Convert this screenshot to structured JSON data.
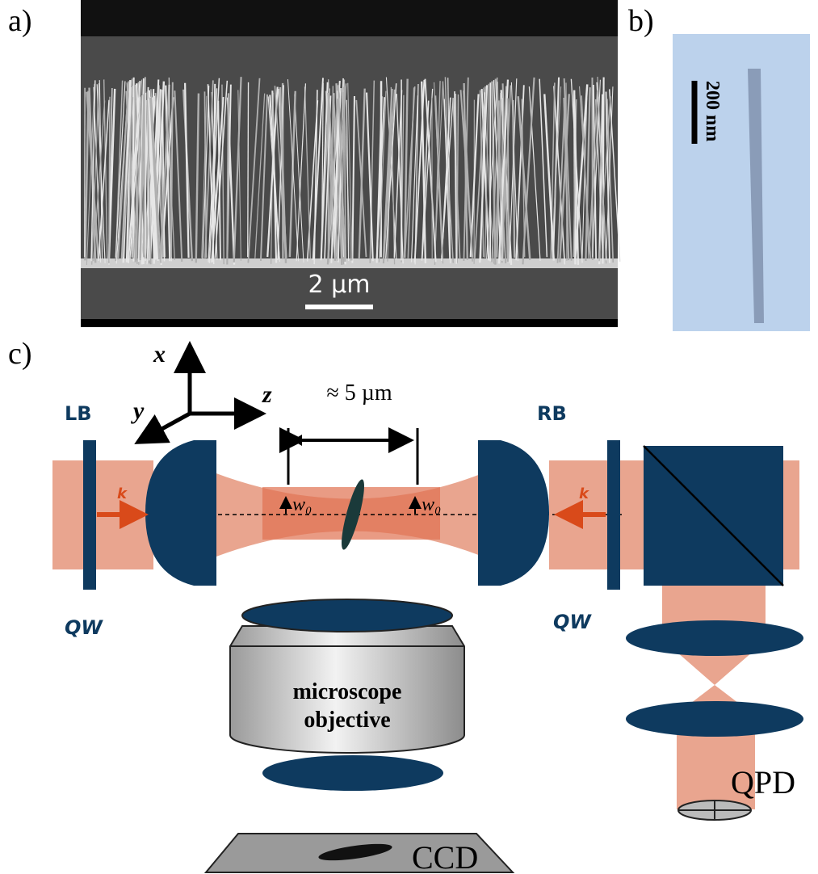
{
  "panels": {
    "a": "a)",
    "b": "b)",
    "c": "c)"
  },
  "sem": {
    "scale_bar": "2 µm"
  },
  "tem": {
    "scale_bar": "200 nm"
  },
  "setup": {
    "axes": {
      "x": "x",
      "y": "y",
      "z": "z"
    },
    "waist_distance": "≈ 5 µm",
    "left_beam": "LB",
    "right_beam": "RB",
    "k_left": "k",
    "k_right": "k",
    "waist_left": "w₀",
    "waist_right": "w₀",
    "qw_left": "QW",
    "qw_right": "QW",
    "objective": [
      "microscope",
      "objective"
    ],
    "detector": "QPD",
    "camera": "CCD"
  }
}
